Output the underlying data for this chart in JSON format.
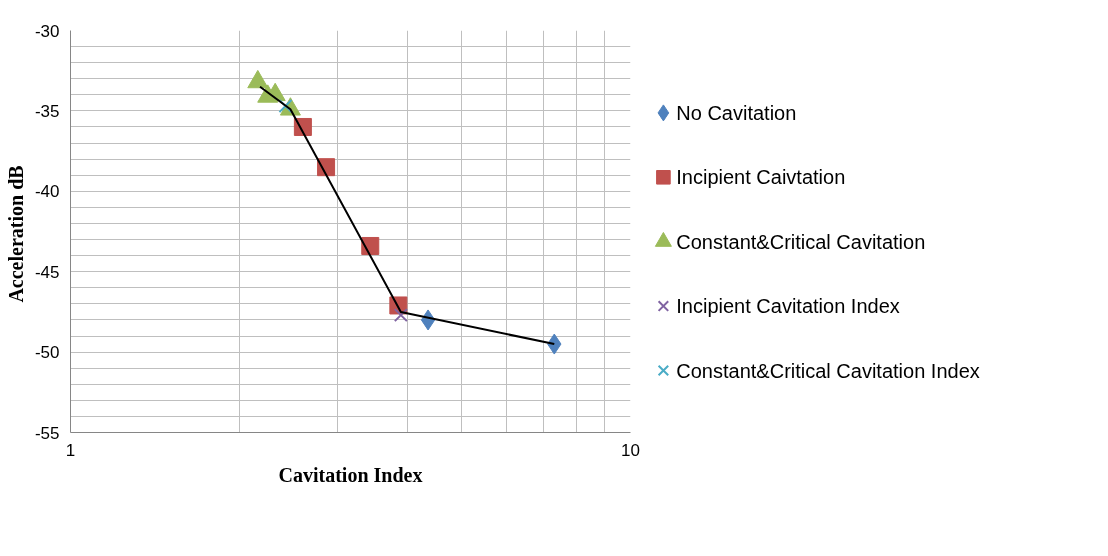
{
  "chart_data": {
    "type": "scatter",
    "xlabel": "Cavitation Index",
    "ylabel": "Acceleration  dB",
    "log": "x",
    "xlim": [
      1,
      10
    ],
    "ylim": [
      -55,
      -30
    ],
    "xticks": [
      1,
      {
        "value": 2,
        "label": null
      },
      {
        "value": 3,
        "label": null
      },
      {
        "value": 4,
        "label": null
      },
      {
        "value": 5,
        "label": null
      },
      {
        "value": 6,
        "label": null
      },
      {
        "value": 7,
        "label": null
      },
      {
        "value": 8,
        "label": null
      },
      {
        "value": 9,
        "label": null
      },
      10
    ],
    "yticks": [
      -55,
      {
        "value": -54,
        "label": null
      },
      {
        "value": -53,
        "label": null
      },
      {
        "value": -52,
        "label": null
      },
      {
        "value": -51,
        "label": null
      },
      -50,
      {
        "value": -49,
        "label": null
      },
      {
        "value": -48,
        "label": null
      },
      {
        "value": -47,
        "label": null
      },
      {
        "value": -46,
        "label": null
      },
      -45,
      {
        "value": -44,
        "label": null
      },
      {
        "value": -43,
        "label": null
      },
      {
        "value": -42,
        "label": null
      },
      {
        "value": -41,
        "label": null
      },
      -40,
      {
        "value": -39,
        "label": null
      },
      {
        "value": -38,
        "label": null
      },
      {
        "value": -37,
        "label": null
      },
      {
        "value": -36,
        "label": null
      },
      -35,
      {
        "value": -34,
        "label": null
      },
      {
        "value": -33,
        "label": null
      },
      {
        "value": -32,
        "label": null
      },
      {
        "value": -31,
        "label": null
      },
      -30
    ],
    "grid": true,
    "legend": "right",
    "series": [
      {
        "name": "No Cavitation",
        "type": "scatter",
        "marker": "diamond",
        "color": "#4f81bd",
        "x": [
          4.35,
          7.31
        ],
        "values": [
          -48.0,
          -49.5
        ]
      },
      {
        "name": "Incipient Caivtation",
        "type": "scatter",
        "marker": "square",
        "color": "#c0504d",
        "x": [
          2.6,
          2.86,
          3.43,
          3.85
        ],
        "values": [
          -36.0,
          -38.5,
          -43.4,
          -47.1
        ]
      },
      {
        "name": "Constant&Critical Cavitation",
        "type": "scatter",
        "marker": "triangle",
        "color": "#9bbb59",
        "x": [
          2.16,
          2.25,
          2.32,
          2.47
        ],
        "values": [
          -33.2,
          -34.1,
          -34.0,
          -34.9
        ]
      },
      {
        "name": "Incipient Cavitation Index",
        "type": "scatter",
        "marker": "cross",
        "color": "#8064a2",
        "x": [
          3.89
        ],
        "values": [
          -47.7
        ]
      },
      {
        "name": "Constant&Critical Cavitation Index",
        "type": "scatter",
        "marker": "cross",
        "color": "#4bacc6",
        "x": [
          2.42
        ],
        "values": [
          -34.7
        ]
      },
      {
        "type": "line",
        "marker": "none",
        "color": "#000000",
        "x": [
          2.18,
          2.47,
          3.89,
          7.31
        ],
        "values": [
          -33.5,
          -34.9,
          -47.5,
          -49.5
        ]
      }
    ]
  }
}
